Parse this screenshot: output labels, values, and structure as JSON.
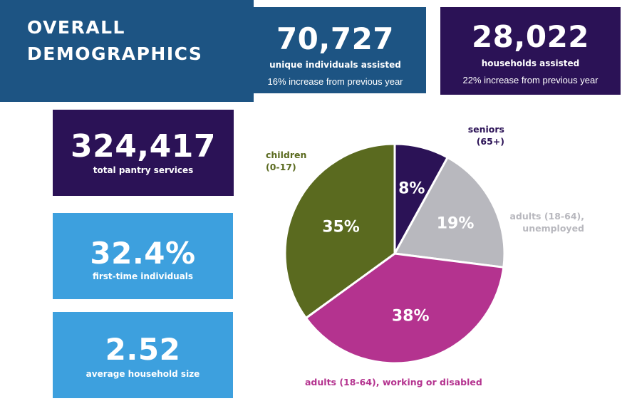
{
  "colors": {
    "dark_blue": "#1d5483",
    "purple": "#2b1256",
    "light_blue": "#3da0de",
    "seniors": "#2b1256",
    "unemployed": "#b8b8be",
    "working": "#b4338f",
    "children": "#5a6a1f"
  },
  "title": {
    "line1": "OVERALL",
    "line2": "DEMOGRAPHICS"
  },
  "stats": {
    "individuals": {
      "value": "70,727",
      "label": "unique individuals assisted",
      "sub": "16% increase from previous year"
    },
    "households": {
      "value": "28,022",
      "label": "households assisted",
      "sub": "22% increase from previous year"
    },
    "pantry": {
      "value": "324,417",
      "label": "total pantry services"
    },
    "first_time": {
      "value": "32.4%",
      "label": "first-time individuals"
    },
    "household_size": {
      "value": "2.52",
      "label": "average household size"
    }
  },
  "chart_data": {
    "type": "pie",
    "title": "",
    "slices": [
      {
        "key": "seniors",
        "label_lines": [
          "seniors",
          "(65+)"
        ],
        "value": 8,
        "pct_label": "8%",
        "color": "#2b1256"
      },
      {
        "key": "unemployed",
        "label_lines": [
          "adults (18-64),",
          "unemployed"
        ],
        "value": 19,
        "pct_label": "19%",
        "color": "#b8b8be"
      },
      {
        "key": "working",
        "label_lines": [
          "adults (18-64), working or disabled"
        ],
        "value": 38,
        "pct_label": "38%",
        "color": "#b4338f"
      },
      {
        "key": "children",
        "label_lines": [
          "children",
          "(0-17)"
        ],
        "value": 35,
        "pct_label": "35%",
        "color": "#5a6a1f"
      }
    ],
    "start_angle_deg": 0,
    "direction": "clockwise",
    "legend": "external labels"
  }
}
